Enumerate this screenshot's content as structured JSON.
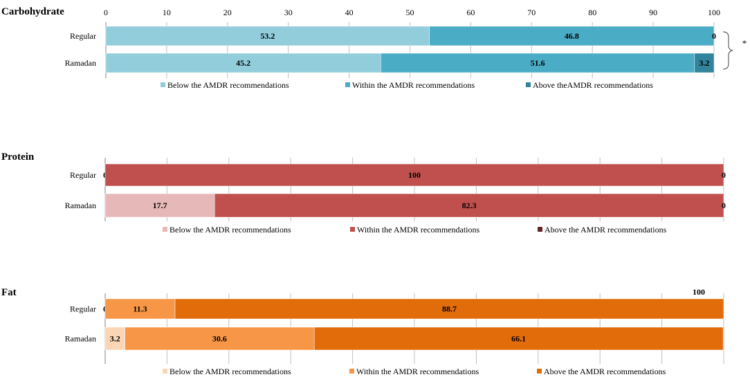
{
  "chart_data": [
    {
      "type": "bar",
      "orientation": "horizontal",
      "stacked": true,
      "title": "Carbohydrate",
      "categories": [
        "Regular",
        "Ramadan"
      ],
      "xlim": [
        0,
        100
      ],
      "xticks": [
        "0",
        "10",
        "20",
        "30",
        "40",
        "50",
        "60",
        "70",
        "80",
        "90",
        "100"
      ],
      "series": [
        {
          "name": "Below the AMDR recommendations",
          "color": "#92cddc",
          "values": [
            53.2,
            45.2
          ],
          "labels": [
            "53.2",
            "45.2"
          ]
        },
        {
          "name": "Within the AMDR recommendations",
          "color": "#4bacc6",
          "values": [
            46.8,
            51.6
          ],
          "labels": [
            "46.8",
            "51.6"
          ]
        },
        {
          "name": "Above theAMDR recommendations",
          "color": "#31849b",
          "values": [
            0,
            3.2
          ],
          "labels": [
            "0",
            "3.2"
          ]
        }
      ],
      "significance_marker": "*"
    },
    {
      "type": "bar",
      "orientation": "horizontal",
      "stacked": true,
      "title": "Protein",
      "categories": [
        "Regular",
        "Ramadan"
      ],
      "xlim": [
        0,
        100
      ],
      "series": [
        {
          "name": "Below the AMDR recommendations",
          "color": "#e6b8b7",
          "values": [
            0,
            17.7
          ],
          "labels": [
            "0",
            "17.7"
          ]
        },
        {
          "name": "Within the AMDR recommendations",
          "color": "#c0504d",
          "values": [
            100,
            82.3
          ],
          "labels": [
            "100",
            "82.3"
          ]
        },
        {
          "name": "Above the AMDR recommendations",
          "color": "#632523",
          "values": [
            0,
            0
          ],
          "labels": [
            "0",
            "0"
          ]
        }
      ]
    },
    {
      "type": "bar",
      "orientation": "horizontal",
      "stacked": true,
      "title": "Fat",
      "categories": [
        "Regular",
        "Ramadan"
      ],
      "xlim": [
        0,
        100
      ],
      "series": [
        {
          "name": "Below the AMDR recommendations",
          "color": "#fcd5b4",
          "values": [
            0,
            3.2
          ],
          "labels": [
            "0",
            "3.2"
          ]
        },
        {
          "name": "Within the AMDR recommendations",
          "color": "#f79646",
          "values": [
            11.3,
            30.6
          ],
          "labels": [
            "11.3",
            "30.6"
          ]
        },
        {
          "name": "Above the AMDR recommendations",
          "color": "#e26b0a",
          "values": [
            88.7,
            66.1
          ],
          "labels": [
            "88.7",
            "66.1"
          ]
        }
      ],
      "total_label": "100"
    }
  ]
}
